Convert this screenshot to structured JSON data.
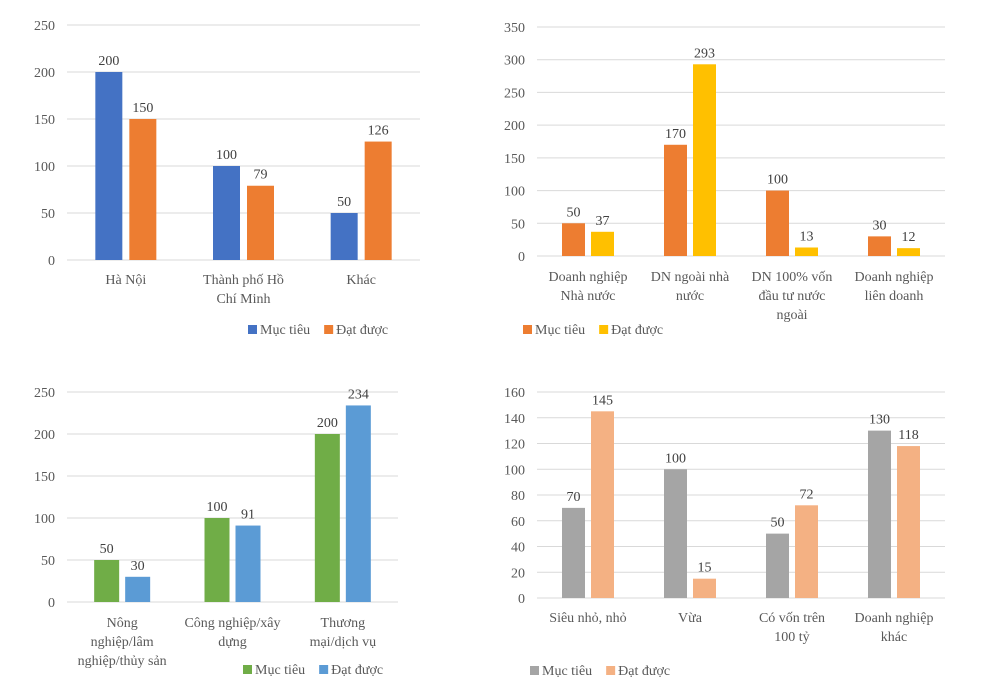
{
  "chart_data": [
    {
      "type": "bar",
      "title": "",
      "xlabel": "",
      "ylabel": "",
      "ylim": [
        0,
        250
      ],
      "yticks": [
        0,
        50,
        100,
        150,
        200,
        250
      ],
      "grid": true,
      "legend_position": "bottom-right",
      "categories": [
        [
          "Hà Nội"
        ],
        [
          "Thành phố Hồ",
          "Chí Minh"
        ],
        [
          "Khác"
        ]
      ],
      "series": [
        {
          "name": "Mục tiêu",
          "color": "#4472C4",
          "values": [
            200,
            100,
            50
          ]
        },
        {
          "name": "Đạt được",
          "color": "#ED7D31",
          "values": [
            150,
            79,
            126
          ]
        }
      ]
    },
    {
      "type": "bar",
      "title": "",
      "xlabel": "",
      "ylabel": "",
      "ylim": [
        0,
        350
      ],
      "yticks": [
        0,
        50,
        100,
        150,
        200,
        250,
        300,
        350
      ],
      "grid": true,
      "legend_position": "bottom-left",
      "categories": [
        [
          "Doanh nghiệp",
          "Nhà nước"
        ],
        [
          "DN ngoài nhà",
          "nước"
        ],
        [
          "DN 100% vốn",
          "đầu tư nước",
          "ngoài"
        ],
        [
          "Doanh nghiệp",
          "liên doanh"
        ]
      ],
      "series": [
        {
          "name": "Mục tiêu",
          "color": "#ED7D31",
          "values": [
            50,
            170,
            100,
            30
          ]
        },
        {
          "name": "Đạt được",
          "color": "#FFC000",
          "values": [
            37,
            293,
            13,
            12
          ]
        }
      ]
    },
    {
      "type": "bar",
      "title": "",
      "xlabel": "",
      "ylabel": "",
      "ylim": [
        0,
        250
      ],
      "yticks": [
        0,
        50,
        100,
        150,
        200,
        250
      ],
      "grid": true,
      "legend_position": "bottom-right",
      "categories": [
        [
          "Nông",
          "nghiệp/lâm",
          "nghiệp/thủy sản"
        ],
        [
          "Công nghiệp/xây",
          "dựng"
        ],
        [
          "Thương",
          "mại/dịch vụ"
        ]
      ],
      "series": [
        {
          "name": "Mục tiêu",
          "color": "#70AD47",
          "values": [
            50,
            100,
            200
          ]
        },
        {
          "name": "Đạt được",
          "color": "#5B9BD5",
          "values": [
            30,
            91,
            234
          ]
        }
      ]
    },
    {
      "type": "bar",
      "title": "",
      "xlabel": "",
      "ylabel": "",
      "ylim": [
        0,
        160
      ],
      "yticks": [
        0,
        20,
        40,
        60,
        80,
        100,
        120,
        140,
        160
      ],
      "grid": true,
      "legend_position": "bottom-left",
      "categories": [
        [
          "Siêu nhỏ, nhỏ"
        ],
        [
          "Vừa"
        ],
        [
          "Có vốn trên",
          "100 tỷ"
        ],
        [
          "Doanh nghiệp",
          "khác"
        ]
      ],
      "series": [
        {
          "name": "Mục tiêu",
          "color": "#A5A5A5",
          "values": [
            70,
            100,
            50,
            130
          ]
        },
        {
          "name": "Đạt được",
          "color": "#F4B183",
          "values": [
            145,
            15,
            72,
            118
          ]
        }
      ]
    }
  ]
}
